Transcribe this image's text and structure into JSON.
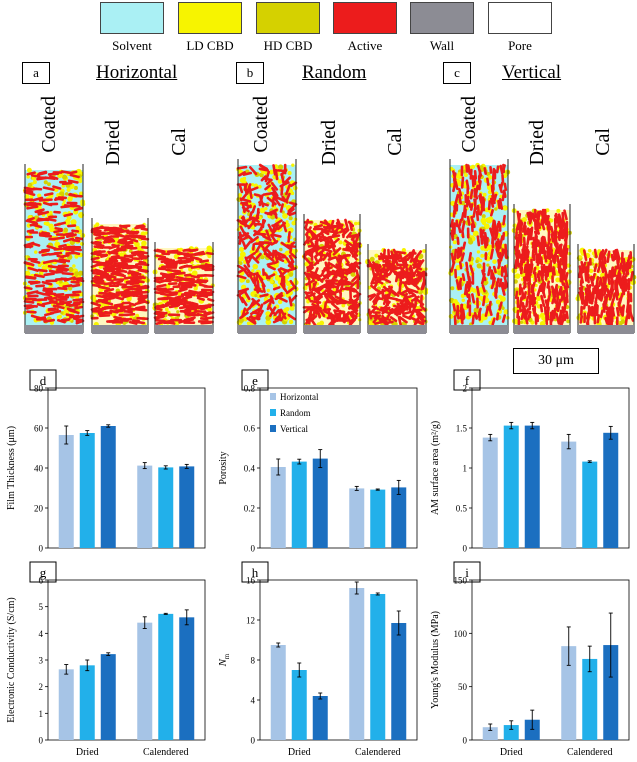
{
  "legend": [
    {
      "label": "Solvent",
      "color": "#aaf0f4"
    },
    {
      "label": "LD CBD",
      "color": "#f7f400"
    },
    {
      "label": "HD CBD",
      "color": "#d5d100"
    },
    {
      "label": "Active",
      "color": "#ec1c1c"
    },
    {
      "label": "Wall",
      "color": "#8c8c94"
    },
    {
      "label": "Pore",
      "color": "#ffffff"
    }
  ],
  "panels_top": [
    {
      "letter": "a",
      "title": "Horizontal"
    },
    {
      "letter": "b",
      "title": "Random"
    },
    {
      "letter": "c",
      "title": "Vertical"
    }
  ],
  "stage_labels": {
    "coated": "Coated",
    "dried": "Dried",
    "cal": "Cal"
  },
  "scale_bar": "30 μm",
  "colors": {
    "horizontal": "#a6c4e6",
    "random": "#22b0ea",
    "vertical": "#1b6fc0"
  },
  "chart_data": [
    {
      "panel": "d",
      "type": "bar",
      "ylabel": "Film Thickness (μm)",
      "ylim": [
        0,
        80
      ],
      "yticks": [
        "0",
        "20",
        "40",
        "60",
        "80"
      ],
      "categories": [
        "Dried",
        "Calendered"
      ],
      "series": [
        {
          "name": "Horizontal",
          "values": [
            56.5,
            41.2
          ],
          "errors": [
            4.5,
            1.5
          ]
        },
        {
          "name": "Random",
          "values": [
            57.5,
            40.3
          ],
          "errors": [
            1.2,
            0.8
          ]
        },
        {
          "name": "Vertical",
          "values": [
            61,
            40.8
          ],
          "errors": [
            0.6,
            1.0
          ]
        }
      ]
    },
    {
      "panel": "e",
      "type": "bar",
      "ylabel": "Porosity",
      "ylim": [
        0,
        0.8
      ],
      "yticks": [
        "0",
        "0.2",
        "0.4",
        "0.6",
        "0.8"
      ],
      "categories": [
        "Dried",
        "Calendered"
      ],
      "legend": [
        "Horizontal",
        "Random",
        "Vertical"
      ],
      "series": [
        {
          "name": "Horizontal",
          "values": [
            0.405,
            0.298
          ],
          "errors": [
            0.04,
            0.01
          ]
        },
        {
          "name": "Random",
          "values": [
            0.432,
            0.292
          ],
          "errors": [
            0.012,
            0.003
          ]
        },
        {
          "name": "Vertical",
          "values": [
            0.447,
            0.303
          ],
          "errors": [
            0.045,
            0.035
          ]
        }
      ]
    },
    {
      "panel": "f",
      "type": "bar",
      "ylabel": "AM surface area (m²/g)",
      "ylim": [
        0,
        2
      ],
      "yticks": [
        "0",
        "0.5",
        "1",
        "1.5",
        "2"
      ],
      "categories": [
        "Dried",
        "Calendered"
      ],
      "series": [
        {
          "name": "Horizontal",
          "values": [
            1.38,
            1.33
          ],
          "errors": [
            0.04,
            0.09
          ]
        },
        {
          "name": "Random",
          "values": [
            1.53,
            1.08
          ],
          "errors": [
            0.04,
            0.01
          ]
        },
        {
          "name": "Vertical",
          "values": [
            1.53,
            1.44
          ],
          "errors": [
            0.04,
            0.08
          ]
        }
      ]
    },
    {
      "panel": "g",
      "type": "bar",
      "ylabel": "Electronic Conductivity (S/cm)",
      "ylim": [
        0,
        6
      ],
      "yticks": [
        "0",
        "1",
        "2",
        "3",
        "4",
        "5",
        "6"
      ],
      "categories": [
        "Dried",
        "Calendered"
      ],
      "series": [
        {
          "name": "Horizontal",
          "values": [
            2.65,
            4.4
          ],
          "errors": [
            0.18,
            0.22
          ]
        },
        {
          "name": "Random",
          "values": [
            2.8,
            4.73
          ],
          "errors": [
            0.2,
            0.02
          ]
        },
        {
          "name": "Vertical",
          "values": [
            3.22,
            4.6
          ],
          "errors": [
            0.05,
            0.28
          ]
        }
      ]
    },
    {
      "panel": "h",
      "type": "bar",
      "ylabel": "N",
      "ylabel_sub": "m",
      "ylim": [
        0,
        16
      ],
      "yticks": [
        "0",
        "4",
        "8",
        "12",
        "16"
      ],
      "categories": [
        "Dried",
        "Calendered"
      ],
      "series": [
        {
          "name": "Horizontal",
          "values": [
            9.5,
            15.2
          ],
          "errors": [
            0.2,
            0.6
          ]
        },
        {
          "name": "Random",
          "values": [
            7.0,
            14.6
          ],
          "errors": [
            0.7,
            0.1
          ]
        },
        {
          "name": "Vertical",
          "values": [
            4.4,
            11.7
          ],
          "errors": [
            0.3,
            1.2
          ]
        }
      ]
    },
    {
      "panel": "i",
      "type": "bar",
      "ylabel": "Young's Modulus (MPa)",
      "ylim": [
        0,
        150
      ],
      "yticks": [
        "0",
        "50",
        "100",
        "150"
      ],
      "categories": [
        "Dried",
        "Calendered"
      ],
      "series": [
        {
          "name": "Horizontal",
          "values": [
            12,
            88
          ],
          "errors": [
            3,
            18
          ]
        },
        {
          "name": "Random",
          "values": [
            14,
            76
          ],
          "errors": [
            4,
            12
          ]
        },
        {
          "name": "Vertical",
          "values": [
            19,
            89
          ],
          "errors": [
            9,
            30
          ]
        }
      ]
    }
  ]
}
